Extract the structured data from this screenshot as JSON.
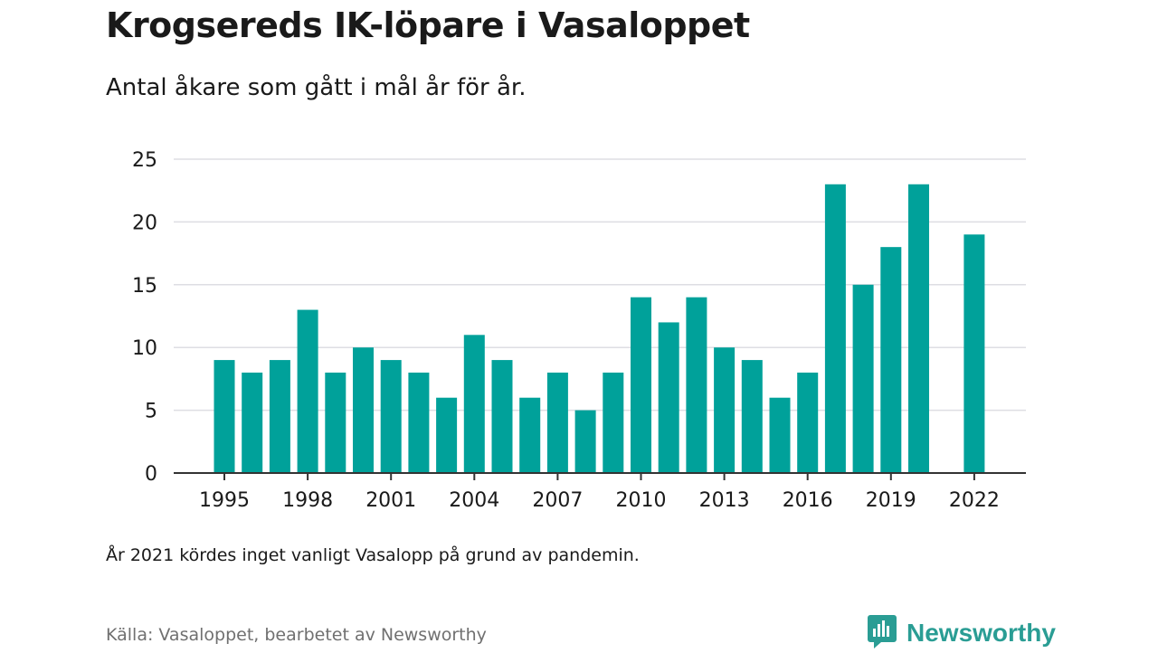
{
  "title": "Krogsereds IK-löpare i Vasaloppet",
  "subtitle": "Antal åkare som gått i mål år för år.",
  "note": "År 2021 kördes inget vanligt Vasalopp på grund av pandemin.",
  "source": "Källa: Vasaloppet, bearbetet av Newsworthy",
  "brand": {
    "name": "Newsworthy",
    "icon": "newsworthy-logo-icon"
  },
  "colors": {
    "bar": "#00a19a",
    "grid": "#dedee3",
    "axis": "#333333",
    "text": "#1a1a1a",
    "brand": "#2a9d94"
  },
  "chart_data": {
    "type": "bar",
    "x": [
      1995,
      1996,
      1997,
      1998,
      1999,
      2000,
      2001,
      2002,
      2003,
      2004,
      2005,
      2006,
      2007,
      2008,
      2009,
      2010,
      2011,
      2012,
      2013,
      2014,
      2015,
      2016,
      2017,
      2018,
      2019,
      2020,
      2021,
      2022
    ],
    "values": [
      9,
      8,
      9,
      13,
      8,
      10,
      9,
      8,
      6,
      11,
      9,
      6,
      8,
      5,
      8,
      14,
      12,
      14,
      10,
      9,
      6,
      8,
      23,
      15,
      18,
      23,
      null,
      19
    ],
    "xticks": [
      "1995",
      "1998",
      "2001",
      "2004",
      "2007",
      "2010",
      "2013",
      "2016",
      "2019",
      "2022"
    ],
    "yticks": [
      "0",
      "5",
      "10",
      "15",
      "20",
      "25"
    ],
    "ylim": [
      0,
      25
    ],
    "grid": true,
    "legend": "none"
  }
}
